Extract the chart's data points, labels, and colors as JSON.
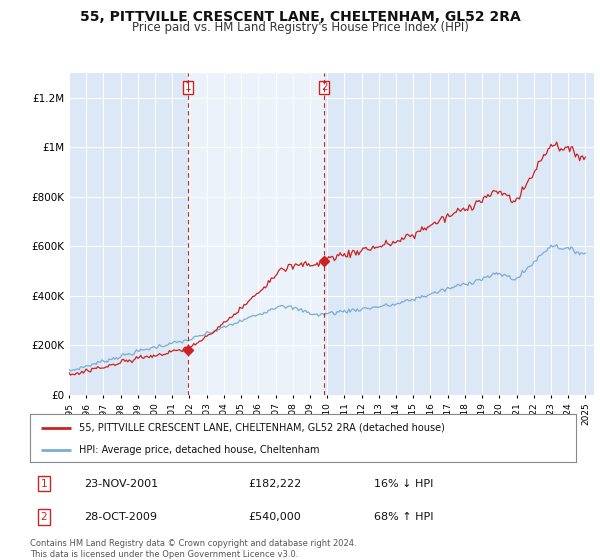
{
  "title": "55, PITTVILLE CRESCENT LANE, CHELTENHAM, GL52 2RA",
  "subtitle": "Price paid vs. HM Land Registry's House Price Index (HPI)",
  "title_fontsize": 10,
  "subtitle_fontsize": 8.5,
  "background_color": "#ffffff",
  "plot_bg_color": "#dce8f5",
  "ylabel_ticks": [
    "£0",
    "£200K",
    "£400K",
    "£600K",
    "£800K",
    "£1M",
    "£1.2M"
  ],
  "ytick_values": [
    0,
    200000,
    400000,
    600000,
    800000,
    1000000,
    1200000
  ],
  "ylim": [
    0,
    1300000
  ],
  "xlim_start": 1995.0,
  "xlim_end": 2025.5,
  "transaction1": {
    "date_label": "23-NOV-2001",
    "price": 182222,
    "x_year": 2001.9,
    "label": "1",
    "hpi_pct": "16% ↓ HPI"
  },
  "transaction2": {
    "date_label": "28-OCT-2009",
    "price": 540000,
    "x_year": 2009.83,
    "label": "2",
    "hpi_pct": "68% ↑ HPI"
  },
  "hpi_line_color": "#7aadd4",
  "price_line_color": "#cc2222",
  "vline_color": "#cc2222",
  "marker_color": "#cc2222",
  "shade_color": "#dce8f5",
  "legend_house_label": "55, PITTVILLE CRESCENT LANE, CHELTENHAM, GL52 2RA (detached house)",
  "legend_hpi_label": "HPI: Average price, detached house, Cheltenham",
  "footnote": "Contains HM Land Registry data © Crown copyright and database right 2024.\nThis data is licensed under the Open Government Licence v3.0.",
  "xtick_years": [
    1995,
    1996,
    1997,
    1998,
    1999,
    2000,
    2001,
    2002,
    2003,
    2004,
    2005,
    2006,
    2007,
    2008,
    2009,
    2010,
    2011,
    2012,
    2013,
    2014,
    2015,
    2016,
    2017,
    2018,
    2019,
    2020,
    2021,
    2022,
    2023,
    2024,
    2025
  ]
}
